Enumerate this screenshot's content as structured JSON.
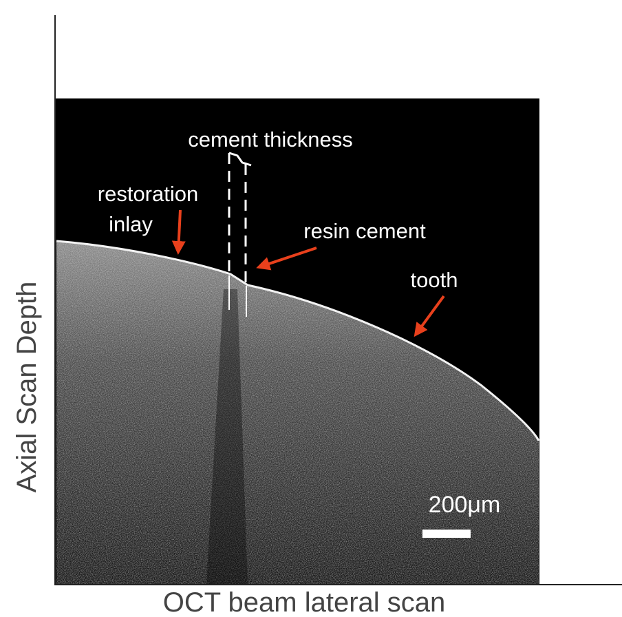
{
  "figure": {
    "labels": {
      "cement_thickness": "cement thickness",
      "restoration_inlay": [
        "restoration",
        "inlay"
      ],
      "resin_cement": "resin cement",
      "tooth": "tooth",
      "scale_bar": "200μm"
    },
    "y_axis_label": "Axial Scan Depth",
    "x_axis_label": "OCT beam lateral scan"
  }
}
